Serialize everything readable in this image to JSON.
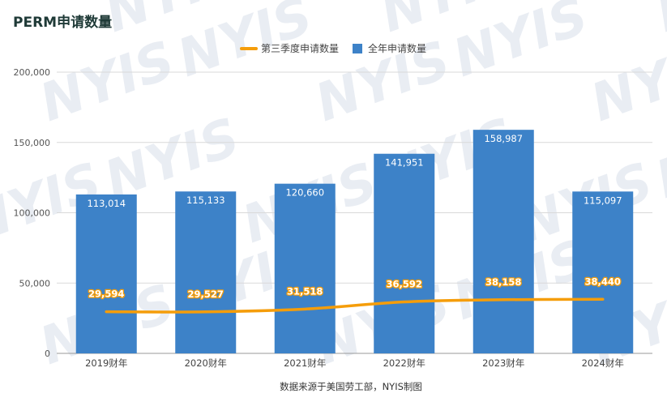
{
  "title": "PERM申请数量",
  "watermark": "NYIS",
  "source": "数据来源于美国劳工部，NYIS制图",
  "colors": {
    "bar": "#3d82c8",
    "line": "#f59d0a",
    "grid": "#d9d9d9",
    "axis": "#999999"
  },
  "chart_data": {
    "type": "bar",
    "categories": [
      "2019财年",
      "2020财年",
      "2021财年",
      "2022财年",
      "2023财年",
      "2024财年"
    ],
    "ylim": [
      0,
      200000
    ],
    "yticks": [
      "0",
      "50,000",
      "100,000",
      "150,000",
      "200,000"
    ],
    "ytick_values": [
      0,
      50000,
      100000,
      150000,
      200000
    ],
    "grid": true,
    "legend_position": "top-center",
    "series": [
      {
        "name": "第三季度申请数量",
        "type": "line",
        "values": [
          29594,
          29527,
          31518,
          36592,
          38158,
          38440
        ],
        "labels": [
          "29,594",
          "29,527",
          "31,518",
          "36,592",
          "38,158",
          "38,440"
        ]
      },
      {
        "name": "全年申请数量",
        "type": "bar",
        "values": [
          113014,
          115133,
          120660,
          141951,
          158987,
          115097
        ],
        "labels": [
          "113,014",
          "115,133",
          "120,660",
          "141,951",
          "158,987",
          "115,097"
        ]
      }
    ]
  }
}
